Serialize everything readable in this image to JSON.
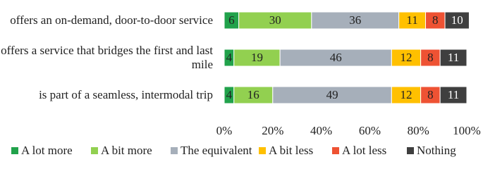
{
  "chart_data": {
    "type": "stacked-barh",
    "categories": [
      "offers an on-demand, door-to-door service",
      "offers a service that bridges the first and last mile",
      "is part of a seamless, intermodal trip"
    ],
    "series": [
      {
        "name": "A lot more",
        "color": "#21a24b",
        "values": [
          6,
          4,
          4
        ]
      },
      {
        "name": "A bit more",
        "color": "#92d050",
        "values": [
          30,
          19,
          16
        ]
      },
      {
        "name": "The equivalent",
        "color": "#a6afba",
        "values": [
          36,
          46,
          49
        ]
      },
      {
        "name": "A bit less",
        "color": "#ffc000",
        "values": [
          11,
          12,
          12
        ]
      },
      {
        "name": "A lot less",
        "color": "#ee5233",
        "values": [
          8,
          8,
          8
        ]
      },
      {
        "name": "Nothing",
        "color": "#3f3f3f",
        "values": [
          10,
          11,
          11
        ]
      }
    ],
    "xlim": [
      0,
      100
    ],
    "xticks": [
      {
        "value": 0,
        "label": "0%"
      },
      {
        "value": 20,
        "label": "20%"
      },
      {
        "value": 40,
        "label": "40%"
      },
      {
        "value": 60,
        "label": "60%"
      },
      {
        "value": 80,
        "label": "80%"
      },
      {
        "value": 100,
        "label": "100%"
      }
    ],
    "legend": "bottom"
  }
}
